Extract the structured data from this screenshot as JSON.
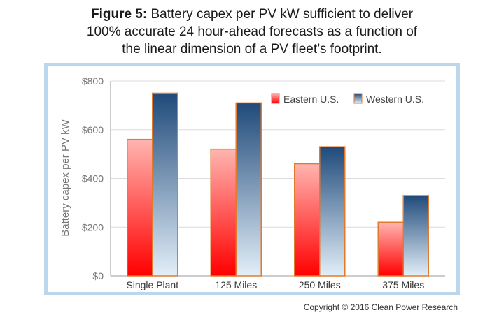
{
  "header": {
    "figure_label": "Figure 5:",
    "title_lines": [
      "Battery capex per PV kW sufficient to deliver",
      "100% accurate 24 hour-ahead forecasts as a function of",
      "the linear dimension of a PV fleet’s footprint."
    ]
  },
  "chart_data": {
    "type": "bar",
    "title": "Battery capex per PV kW sufficient to deliver 100% accurate 24 hour-ahead forecasts as a function of the linear dimension of a PV fleet’s footprint.",
    "categories": [
      "Single Plant",
      "125 Miles",
      "250 Miles",
      "375 Miles"
    ],
    "series": [
      {
        "name": "Eastern U.S.",
        "values": [
          560,
          520,
          460,
          220
        ],
        "color_top": "#ffb5b0",
        "color_bottom": "#ff0000"
      },
      {
        "name": "Western U.S.",
        "values": [
          750,
          710,
          530,
          330
        ],
        "color_top": "#1f4a7a",
        "color_bottom": "#e3eef8"
      }
    ],
    "ylabel": "Battery capex per PV kW",
    "xlabel": "",
    "ylim": [
      0,
      800
    ],
    "yticks": [
      0,
      200,
      400,
      600,
      800
    ],
    "ytick_labels": [
      "$0",
      "$200",
      "$400",
      "$600",
      "$800"
    ],
    "grid": true,
    "legend_position": "top-right",
    "bar_border_color": "#e07a2e"
  },
  "footer": {
    "copyright": "Copyright © 2016 Clean Power Research"
  }
}
